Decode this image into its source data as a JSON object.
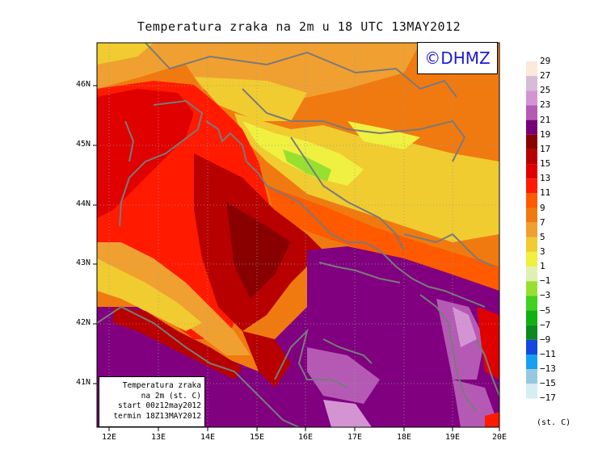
{
  "title": "Temperatura zraka na 2m u 18 UTC 13MAY2012",
  "logo": "©DHMZ",
  "info_box": [
    "Temperatura zraka",
    "na 2m (st. C)",
    "start 00z12may2012",
    "termin 18Z13MAY2012"
  ],
  "x_ticks": [
    "12E",
    "13E",
    "14E",
    "15E",
    "16E",
    "17E",
    "18E",
    "19E",
    "20E"
  ],
  "y_ticks": [
    "46N",
    "45N",
    "44N",
    "43N",
    "42N",
    "41N"
  ],
  "colorbar": {
    "units": "(st. C)",
    "labels": [
      "29",
      "27",
      "25",
      "23",
      "21",
      "19",
      "17",
      "15",
      "13",
      "11",
      "9",
      "7",
      "5",
      "3",
      "1",
      "−1",
      "−3",
      "−5",
      "−7",
      "−9",
      "−11",
      "−13",
      "−15",
      "−17"
    ],
    "colors": [
      "#fde8dc",
      "#d6bcd6",
      "#d494d4",
      "#b45ab4",
      "#780078",
      "#8a0000",
      "#b80000",
      "#e00000",
      "#ff1a00",
      "#ff5a00",
      "#f07a10",
      "#f0a030",
      "#f0cc30",
      "#f0f040",
      "#e0f0b0",
      "#98e030",
      "#40d020",
      "#10b010",
      "#0a8a20",
      "#1446e0",
      "#18a0f0",
      "#98c8e0",
      "#d8ecf4"
    ]
  },
  "colors": {
    "sea": "#800080",
    "coast": "#7a7a7a"
  }
}
